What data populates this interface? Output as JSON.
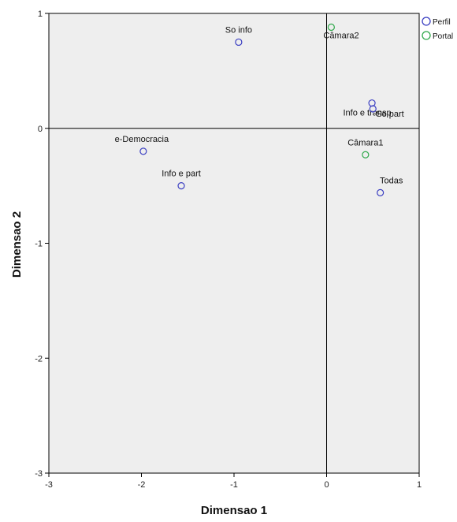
{
  "chart_data": {
    "type": "scatter",
    "xlabel": "Dimensao 1",
    "ylabel": "Dimensao 2",
    "xlim": [
      -3,
      1
    ],
    "ylim": [
      -3,
      1
    ],
    "x_ticks": [
      "-3",
      "-2",
      "-1",
      "0",
      "1"
    ],
    "y_ticks": [
      "1",
      "0",
      "-1",
      "-2",
      "-3"
    ],
    "x_tick_values": [
      -3,
      -2,
      -1,
      0,
      1
    ],
    "y_tick_values": [
      1,
      0,
      -1,
      -2,
      -3
    ],
    "reference_lines": {
      "x": 0,
      "y": 0
    },
    "legend_position": "top-right, outside plot",
    "series": [
      {
        "name": "Perfil",
        "color": "#3b3fc2",
        "points": [
          {
            "label": "So info",
            "x": -0.95,
            "y": 0.75
          },
          {
            "label": "e-Democracia",
            "x": -1.98,
            "y": -0.2
          },
          {
            "label": "Info e part",
            "x": -1.57,
            "y": -0.5
          },
          {
            "label": "Info e transp",
            "x": 0.49,
            "y": 0.22
          },
          {
            "label": "So part",
            "x": 0.5,
            "y": 0.17
          },
          {
            "label": "Todas",
            "x": 0.58,
            "y": -0.56
          }
        ]
      },
      {
        "name": "Portal",
        "color": "#2fa84a",
        "points": [
          {
            "label": "Câmara2",
            "x": 0.05,
            "y": 0.88
          },
          {
            "label": "Câmara1",
            "x": 0.42,
            "y": -0.23
          }
        ]
      }
    ]
  }
}
